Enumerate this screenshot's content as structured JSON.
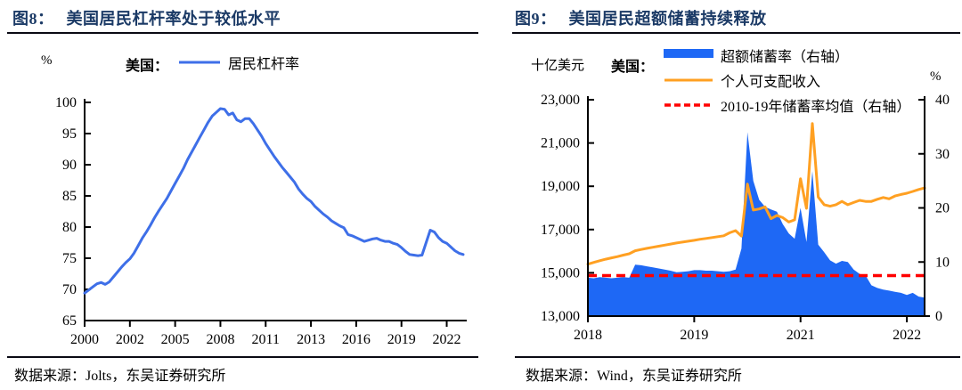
{
  "panels": [
    {
      "title_prefix": "图8：",
      "title": "美国居民杠杆率处于较低水平",
      "footer": "数据来源：Jolts，东吴证券研究所",
      "legend": {
        "axis_unit": "%",
        "region_label": "美国：",
        "series_label": "居民杠杆率"
      }
    },
    {
      "title_prefix": "图9：",
      "title": "美国居民超额储蓄持续释放",
      "footer": "数据来源：Wind，东吴证券研究所",
      "legend": {
        "axis_unit_left": "十亿美元",
        "axis_unit_right": "%",
        "region_label": "美国：",
        "items": [
          {
            "label": "超额储蓄率（右轴）"
          },
          {
            "label": "个人可支配收入"
          },
          {
            "label": "2010-19年储蓄率均值（右轴）"
          }
        ]
      }
    }
  ],
  "chart_data": [
    {
      "type": "line",
      "title": "图8：美国居民杠杆率处于较低水平",
      "x_mode": "quarterly",
      "x_start": "2000Q1",
      "x_end": "2023Q1",
      "ylabel": "%",
      "ylim": [
        65,
        100
      ],
      "ytick_step": 5,
      "xticks": {
        "indices": [
          0,
          11,
          22,
          33,
          44,
          55,
          66,
          77,
          88
        ],
        "labels": [
          "2000",
          "2002",
          "2005",
          "2008",
          "2011",
          "2013",
          "2016",
          "2019",
          "2022"
        ]
      },
      "legend_position": "top",
      "grid": false,
      "series": [
        {
          "name": "居民杠杆率",
          "color": "#3e6fe8",
          "values": [
            69.4,
            69.9,
            70.4,
            70.9,
            71.1,
            70.8,
            71.2,
            72.0,
            72.8,
            73.6,
            74.3,
            74.9,
            75.8,
            77.0,
            78.2,
            79.2,
            80.3,
            81.5,
            82.6,
            83.6,
            84.6,
            85.8,
            87.0,
            88.2,
            89.4,
            90.8,
            92.0,
            93.2,
            94.4,
            95.6,
            96.8,
            97.8,
            98.4,
            99.0,
            98.9,
            98.0,
            98.3,
            97.2,
            96.9,
            97.4,
            97.4,
            96.6,
            95.6,
            94.6,
            93.4,
            92.4,
            91.4,
            90.5,
            89.6,
            88.8,
            88.0,
            87.2,
            86.1,
            85.3,
            84.6,
            84.1,
            83.3,
            82.7,
            82.1,
            81.6,
            81.0,
            80.6,
            80.2,
            79.9,
            78.8,
            78.6,
            78.3,
            78.0,
            77.7,
            77.9,
            78.1,
            78.2,
            77.9,
            77.7,
            77.7,
            77.4,
            77.2,
            76.7,
            76.1,
            75.6,
            75.5,
            75.4,
            75.5,
            77.5,
            79.5,
            79.2,
            78.3,
            77.7,
            77.4,
            76.8,
            76.2,
            75.8,
            75.6
          ]
        }
      ]
    },
    {
      "type": "area",
      "title": "图9：美国居民超额储蓄持续释放",
      "x_mode": "monthly",
      "x_start": "2018-01",
      "x_end": "2022-10",
      "left_axis": {
        "label": "十亿美元",
        "lim": [
          13000,
          23000
        ],
        "tick_step": 2000
      },
      "right_axis": {
        "label": "%",
        "lim": [
          0,
          40
        ],
        "tick_step": 10
      },
      "xticks": {
        "indices": [
          0,
          18,
          36,
          54
        ],
        "labels": [
          "2018",
          "2019",
          "2021",
          "2022"
        ]
      },
      "grid": false,
      "series": [
        {
          "name": "超额储蓄率（右轴）",
          "type": "area",
          "axis": "right",
          "color": "#1e68f5",
          "values": [
            7.1,
            7.0,
            7.2,
            7.1,
            7.0,
            7.1,
            7.2,
            7.1,
            9.5,
            9.4,
            9.2,
            9.0,
            8.8,
            8.6,
            8.4,
            8.1,
            8.2,
            8.3,
            8.5,
            8.5,
            8.4,
            8.4,
            8.3,
            8.2,
            8.3,
            8.6,
            12.5,
            34.0,
            25.0,
            21.5,
            20.2,
            19.7,
            19.3,
            17.0,
            15.3,
            14.3,
            20.0,
            13.7,
            26.8,
            13.2,
            11.8,
            10.3,
            9.7,
            10.2,
            10.0,
            8.6,
            7.8,
            7.5,
            5.7,
            5.2,
            4.9,
            4.7,
            4.5,
            4.3,
            3.9,
            4.3,
            3.6,
            3.4
          ]
        },
        {
          "name": "个人可支配收入",
          "type": "line",
          "axis": "left",
          "color": "#ffa022",
          "values": [
            15400,
            15480,
            15560,
            15630,
            15690,
            15750,
            15820,
            15880,
            16020,
            16080,
            16130,
            16180,
            16230,
            16280,
            16330,
            16380,
            16420,
            16460,
            16500,
            16550,
            16590,
            16630,
            16670,
            16710,
            16850,
            16950,
            16700,
            19100,
            17900,
            17950,
            18050,
            17500,
            17650,
            17550,
            17350,
            17450,
            19350,
            17980,
            21900,
            18500,
            18150,
            18080,
            18150,
            18300,
            18150,
            18250,
            18350,
            18300,
            18300,
            18400,
            18480,
            18420,
            18550,
            18620,
            18680,
            18760,
            18850,
            18920
          ]
        },
        {
          "name": "2010-19年储蓄率均值（右轴）",
          "type": "dashed-constant",
          "axis": "right",
          "color": "#ff0000",
          "value": 7.5
        }
      ]
    }
  ]
}
